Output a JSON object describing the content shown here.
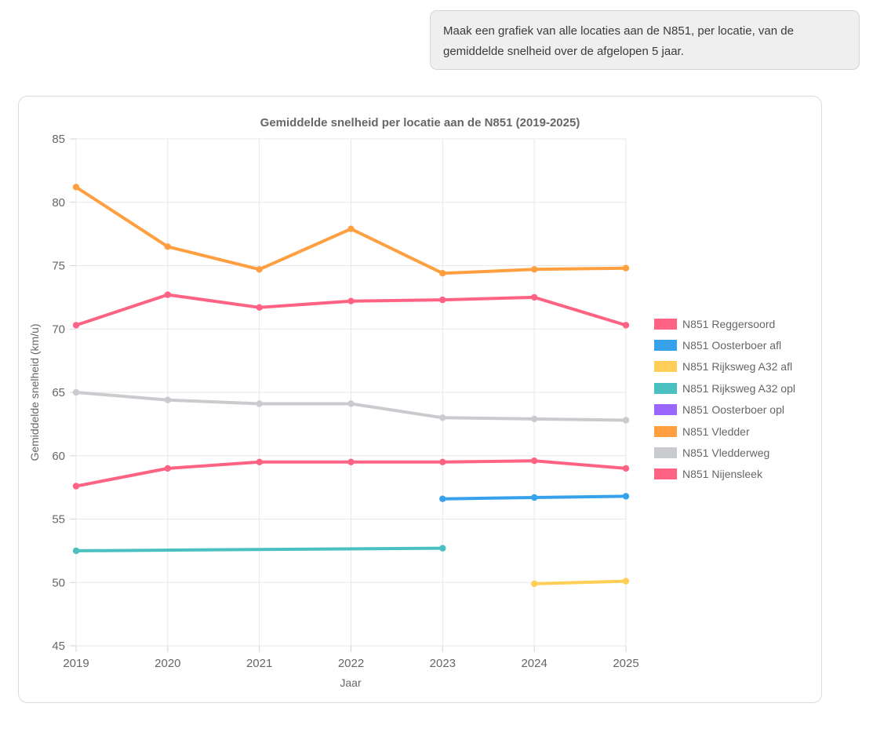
{
  "instruction": {
    "text": "Maak een grafiek van alle locaties aan de N851, per locatie, van de gemiddelde snelheid over de afgelopen 5 jaar."
  },
  "chart_data": {
    "type": "line",
    "title": "Gemiddelde snelheid per locatie aan de N851 (2019-2025)",
    "xlabel": "Jaar",
    "ylabel": "Gemiddelde snelheid (km/u)",
    "x": [
      2019,
      2020,
      2021,
      2022,
      2023,
      2024,
      2025
    ],
    "ylim": [
      45,
      85
    ],
    "ytick_step": 5,
    "grid": true,
    "legend_position": "right",
    "series": [
      {
        "name": "N851 Reggersoord",
        "color": "#FF6384",
        "values": [
          70.3,
          72.7,
          71.7,
          72.2,
          72.3,
          72.5,
          70.3
        ]
      },
      {
        "name": "N851 Oosterboer afl",
        "color": "#36A2EB",
        "values": [
          null,
          null,
          null,
          null,
          56.6,
          56.7,
          56.8
        ]
      },
      {
        "name": "N851 Rijksweg A32 afl",
        "color": "#FFCE56",
        "values": [
          null,
          null,
          null,
          null,
          null,
          49.9,
          50.1
        ]
      },
      {
        "name": "N851 Rijksweg A32 opl",
        "color": "#4BC0C0",
        "values": [
          52.5,
          null,
          null,
          null,
          52.7,
          null,
          null
        ]
      },
      {
        "name": "N851 Oosterboer opl",
        "color": "#9966FF",
        "values": [
          null,
          null,
          null,
          null,
          null,
          null,
          null
        ]
      },
      {
        "name": "N851 Vledder",
        "color": "#FF9F40",
        "values": [
          81.2,
          76.5,
          74.7,
          77.9,
          74.4,
          74.7,
          74.8
        ]
      },
      {
        "name": "N851 Vledderweg",
        "color": "#C9CBCF",
        "values": [
          65.0,
          64.4,
          64.1,
          64.1,
          63.0,
          62.9,
          62.8
        ]
      },
      {
        "name": "N851 Nijensleek",
        "color": "#FF6384",
        "values": [
          57.6,
          59.0,
          59.5,
          59.5,
          59.5,
          59.6,
          59.0
        ]
      }
    ]
  }
}
